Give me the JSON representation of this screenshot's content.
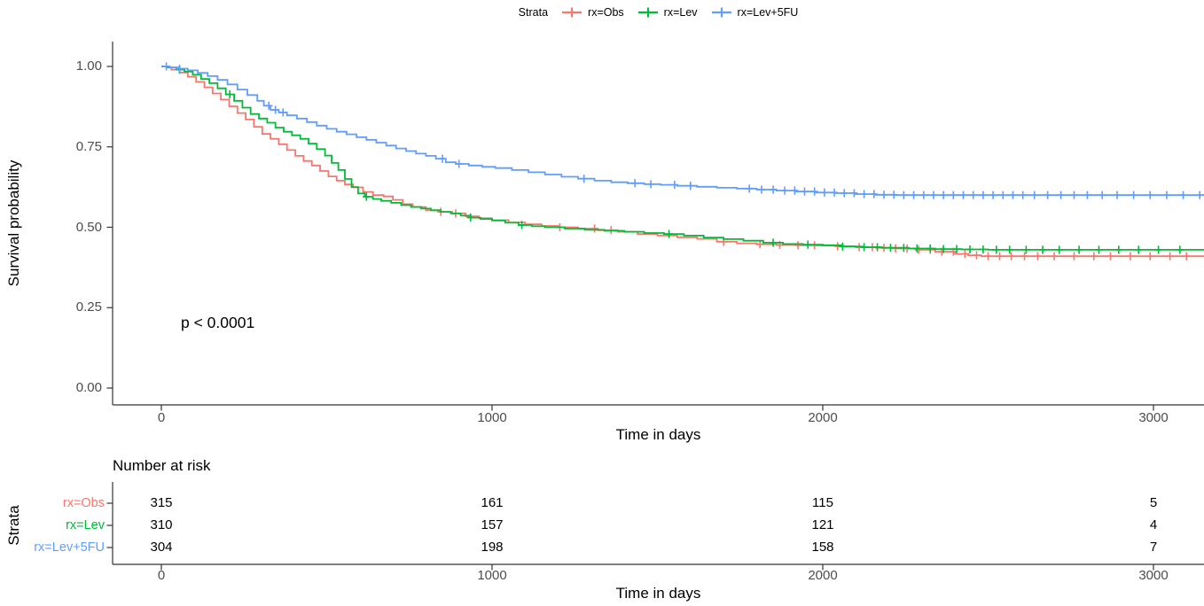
{
  "legend": {
    "title": "Strata",
    "items": [
      {
        "label": "rx=Obs",
        "color": "#F8766D"
      },
      {
        "label": "rx=Lev",
        "color": "#00BA38"
      },
      {
        "label": "rx=Lev+5FU",
        "color": "#619CFF"
      }
    ]
  },
  "y_axis": {
    "title": "Survival probability",
    "ticks": [
      "1.00",
      "0.75",
      "0.50",
      "0.25",
      "0.00"
    ]
  },
  "x_axis": {
    "title": "Time in days",
    "ticks": [
      "0",
      "1000",
      "2000",
      "3000"
    ]
  },
  "annotation": {
    "p_value": "p < 0.0001"
  },
  "risk_table": {
    "title": "Number at risk",
    "axis_title": "Strata",
    "x_title": "Time in days",
    "x_ticks": [
      "0",
      "1000",
      "2000",
      "3000"
    ],
    "rows": [
      {
        "label": "rx=Obs",
        "color": "#F8766D",
        "values": [
          "315",
          "161",
          "115",
          "5"
        ]
      },
      {
        "label": "rx=Lev",
        "color": "#00BA38",
        "values": [
          "310",
          "157",
          "121",
          "4"
        ]
      },
      {
        "label": "rx=Lev+5FU",
        "color": "#619CFF",
        "values": [
          "304",
          "198",
          "158",
          "7"
        ]
      }
    ]
  },
  "chart_data": {
    "type": "line",
    "subtype": "kaplan-meier-step",
    "title": "",
    "xlabel": "Time in days",
    "ylabel": "Survival probability",
    "xlim": [
      0,
      3170
    ],
    "ylim": [
      0,
      1
    ],
    "x_ticks": [
      0,
      1000,
      2000,
      3000
    ],
    "y_ticks": [
      0,
      0.25,
      0.5,
      0.75,
      1
    ],
    "grid": false,
    "legend_position": "top",
    "p_value": "p < 0.0001",
    "series": [
      {
        "name": "rx=Obs",
        "color": "#F8766D",
        "points": [
          [
            0,
            1.0
          ],
          [
            15,
            0.997
          ],
          [
            30,
            0.99
          ],
          [
            55,
            0.981
          ],
          [
            80,
            0.968
          ],
          [
            105,
            0.952
          ],
          [
            130,
            0.935
          ],
          [
            155,
            0.916
          ],
          [
            180,
            0.897
          ],
          [
            205,
            0.876
          ],
          [
            230,
            0.855
          ],
          [
            255,
            0.835
          ],
          [
            280,
            0.812
          ],
          [
            305,
            0.79
          ],
          [
            330,
            0.775
          ],
          [
            355,
            0.758
          ],
          [
            380,
            0.74
          ],
          [
            405,
            0.722
          ],
          [
            430,
            0.706
          ],
          [
            455,
            0.692
          ],
          [
            480,
            0.675
          ],
          [
            505,
            0.658
          ],
          [
            530,
            0.645
          ],
          [
            555,
            0.633
          ],
          [
            580,
            0.624
          ],
          [
            610,
            0.61
          ],
          [
            640,
            0.6
          ],
          [
            672,
            0.596
          ],
          [
            700,
            0.585
          ],
          [
            730,
            0.572
          ],
          [
            760,
            0.563
          ],
          [
            800,
            0.553
          ],
          [
            840,
            0.548
          ],
          [
            880,
            0.543
          ],
          [
            920,
            0.534
          ],
          [
            960,
            0.528
          ],
          [
            1000,
            0.522
          ],
          [
            1050,
            0.515
          ],
          [
            1100,
            0.509
          ],
          [
            1150,
            0.504
          ],
          [
            1200,
            0.5
          ],
          [
            1260,
            0.496
          ],
          [
            1320,
            0.491
          ],
          [
            1380,
            0.486
          ],
          [
            1440,
            0.479
          ],
          [
            1500,
            0.474
          ],
          [
            1560,
            0.469
          ],
          [
            1620,
            0.464
          ],
          [
            1680,
            0.455
          ],
          [
            1740,
            0.45
          ],
          [
            1800,
            0.447
          ],
          [
            1860,
            0.445
          ],
          [
            1920,
            0.444
          ],
          [
            1980,
            0.443
          ],
          [
            2040,
            0.441
          ],
          [
            2100,
            0.438
          ],
          [
            2160,
            0.436
          ],
          [
            2220,
            0.434
          ],
          [
            2280,
            0.43
          ],
          [
            2340,
            0.424
          ],
          [
            2400,
            0.417
          ],
          [
            2440,
            0.413
          ],
          [
            2480,
            0.41
          ],
          [
            3170,
            0.41
          ]
        ],
        "censor_times": [
          845,
          890,
          1205,
          1310,
          1360,
          1700,
          1810,
          1870,
          1925,
          1975,
          2045,
          2110,
          2150,
          2185,
          2220,
          2255,
          2290,
          2325,
          2360,
          2395,
          2430,
          2465,
          2500,
          2535,
          2570,
          2610,
          2650,
          2700,
          2760,
          2820,
          2870,
          2930,
          2990,
          3050,
          3100
        ],
        "number_at_risk": [
          315,
          161,
          115,
          5
        ]
      },
      {
        "name": "rx=Lev",
        "color": "#00BA38",
        "points": [
          [
            0,
            1.0
          ],
          [
            20,
            0.997
          ],
          [
            45,
            0.99
          ],
          [
            70,
            0.984
          ],
          [
            95,
            0.974
          ],
          [
            120,
            0.961
          ],
          [
            145,
            0.948
          ],
          [
            170,
            0.932
          ],
          [
            195,
            0.913
          ],
          [
            220,
            0.893
          ],
          [
            245,
            0.872
          ],
          [
            270,
            0.852
          ],
          [
            295,
            0.838
          ],
          [
            320,
            0.825
          ],
          [
            345,
            0.81
          ],
          [
            370,
            0.797
          ],
          [
            395,
            0.786
          ],
          [
            420,
            0.775
          ],
          [
            445,
            0.76
          ],
          [
            470,
            0.743
          ],
          [
            495,
            0.723
          ],
          [
            515,
            0.7
          ],
          [
            535,
            0.678
          ],
          [
            555,
            0.65
          ],
          [
            575,
            0.625
          ],
          [
            595,
            0.605
          ],
          [
            615,
            0.595
          ],
          [
            640,
            0.588
          ],
          [
            665,
            0.582
          ],
          [
            695,
            0.576
          ],
          [
            725,
            0.569
          ],
          [
            755,
            0.563
          ],
          [
            785,
            0.558
          ],
          [
            815,
            0.553
          ],
          [
            845,
            0.548
          ],
          [
            875,
            0.543
          ],
          [
            905,
            0.536
          ],
          [
            935,
            0.53
          ],
          [
            965,
            0.526
          ],
          [
            1000,
            0.521
          ],
          [
            1040,
            0.514
          ],
          [
            1080,
            0.507
          ],
          [
            1120,
            0.503
          ],
          [
            1160,
            0.5
          ],
          [
            1220,
            0.496
          ],
          [
            1280,
            0.492
          ],
          [
            1340,
            0.489
          ],
          [
            1400,
            0.486
          ],
          [
            1460,
            0.482
          ],
          [
            1520,
            0.479
          ],
          [
            1580,
            0.474
          ],
          [
            1640,
            0.468
          ],
          [
            1700,
            0.463
          ],
          [
            1760,
            0.458
          ],
          [
            1820,
            0.452
          ],
          [
            1880,
            0.448
          ],
          [
            1940,
            0.446
          ],
          [
            2000,
            0.444
          ],
          [
            2060,
            0.44
          ],
          [
            2120,
            0.438
          ],
          [
            2180,
            0.436
          ],
          [
            2260,
            0.434
          ],
          [
            2340,
            0.432
          ],
          [
            2420,
            0.431
          ],
          [
            2500,
            0.43
          ],
          [
            3170,
            0.43
          ]
        ],
        "censor_times": [
          55,
          207,
          620,
          935,
          1090,
          1535,
          1850,
          1955,
          2060,
          2125,
          2165,
          2205,
          2245,
          2285,
          2325,
          2365,
          2405,
          2445,
          2485,
          2525,
          2565,
          2615,
          2665,
          2715,
          2775,
          2835,
          2895,
          2955,
          3015,
          3080
        ],
        "number_at_risk": [
          310,
          157,
          121,
          4
        ]
      },
      {
        "name": "rx=Lev+5FU",
        "color": "#619CFF",
        "points": [
          [
            0,
            1.0
          ],
          [
            25,
            0.997
          ],
          [
            50,
            0.993
          ],
          [
            80,
            0.988
          ],
          [
            110,
            0.98
          ],
          [
            140,
            0.97
          ],
          [
            170,
            0.958
          ],
          [
            200,
            0.944
          ],
          [
            230,
            0.928
          ],
          [
            260,
            0.911
          ],
          [
            290,
            0.893
          ],
          [
            310,
            0.878
          ],
          [
            330,
            0.865
          ],
          [
            355,
            0.857
          ],
          [
            380,
            0.848
          ],
          [
            410,
            0.838
          ],
          [
            440,
            0.827
          ],
          [
            470,
            0.816
          ],
          [
            500,
            0.806
          ],
          [
            530,
            0.797
          ],
          [
            560,
            0.789
          ],
          [
            590,
            0.78
          ],
          [
            620,
            0.772
          ],
          [
            650,
            0.763
          ],
          [
            680,
            0.754
          ],
          [
            710,
            0.745
          ],
          [
            740,
            0.737
          ],
          [
            770,
            0.729
          ],
          [
            800,
            0.722
          ],
          [
            830,
            0.713
          ],
          [
            860,
            0.702
          ],
          [
            890,
            0.697
          ],
          [
            930,
            0.692
          ],
          [
            970,
            0.688
          ],
          [
            1010,
            0.684
          ],
          [
            1060,
            0.678
          ],
          [
            1110,
            0.671
          ],
          [
            1160,
            0.664
          ],
          [
            1210,
            0.657
          ],
          [
            1260,
            0.651
          ],
          [
            1310,
            0.645
          ],
          [
            1360,
            0.64
          ],
          [
            1410,
            0.637
          ],
          [
            1460,
            0.634
          ],
          [
            1510,
            0.632
          ],
          [
            1560,
            0.629
          ],
          [
            1620,
            0.626
          ],
          [
            1680,
            0.623
          ],
          [
            1740,
            0.62
          ],
          [
            1800,
            0.617
          ],
          [
            1860,
            0.614
          ],
          [
            1920,
            0.611
          ],
          [
            1980,
            0.608
          ],
          [
            2040,
            0.606
          ],
          [
            2100,
            0.603
          ],
          [
            2160,
            0.601
          ],
          [
            2220,
            0.6
          ],
          [
            3170,
            0.6
          ]
        ],
        "censor_times": [
          15,
          55,
          325,
          345,
          368,
          850,
          900,
          1278,
          1432,
          1480,
          1552,
          1600,
          1778,
          1815,
          1850,
          1885,
          1915,
          1945,
          1975,
          2005,
          2035,
          2065,
          2095,
          2125,
          2155,
          2185,
          2215,
          2245,
          2275,
          2305,
          2335,
          2365,
          2395,
          2425,
          2455,
          2485,
          2515,
          2545,
          2575,
          2605,
          2640,
          2680,
          2720,
          2760,
          2800,
          2845,
          2890,
          2940,
          2990,
          3040,
          3090,
          3140
        ],
        "number_at_risk": [
          304,
          198,
          158,
          7
        ]
      }
    ],
    "number_at_risk": {
      "times": [
        0,
        1000,
        2000,
        3000
      ],
      "rows": [
        {
          "name": "rx=Obs",
          "values": [
            315,
            161,
            115,
            5
          ]
        },
        {
          "name": "rx=Lev",
          "values": [
            310,
            157,
            121,
            4
          ]
        },
        {
          "name": "rx=Lev+5FU",
          "values": [
            304,
            198,
            158,
            7
          ]
        }
      ]
    }
  }
}
